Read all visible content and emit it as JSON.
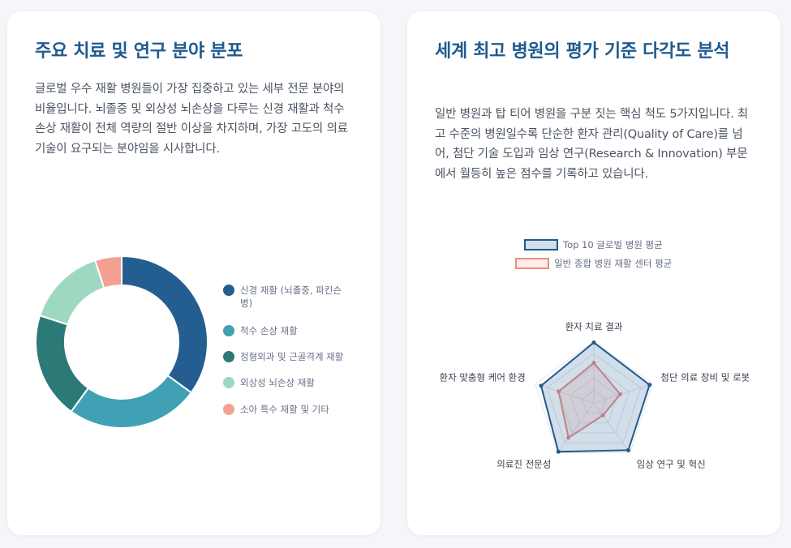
{
  "left_card": {
    "title": "주요 치료 및 연구 분야 분포",
    "description": "글로벌 우수 재활 병원들이 가장 집중하고 있는 세부 전문 분야의 비율입니다. 뇌졸중 및 외상성 뇌손상을 다루는 신경 재활과 척수 손상 재활이 전체 역량의 절반 이상을 차지하며, 가장 고도의 의료 기술이 요구되는 분야임을 시사합니다."
  },
  "right_card": {
    "title": "세계 최고 병원의 평가 기준 다각도 분석",
    "description": "일반 병원과 탑 티어 병원을 구분 짓는 핵심 척도 5가지입니다. 최고 수준의 병원일수록 단순한 환자 관리(Quality of Care)를 넘어, 첨단 기술 도입과 임상 연구(Research & Innovation) 부문에서 월등히 높은 점수를 기록하고 있습니다."
  },
  "chart_data": [
    {
      "type": "pie",
      "variant": "doughnut",
      "categories": [
        "신경 재활 (뇌졸중, 파킨슨병)",
        "척수 손상 재활",
        "정형외과 및 근골격계 재활",
        "외상성 뇌손상 재활",
        "소아 특수 재활 및 기타"
      ],
      "legend_lines": [
        [
          "신경 재활 (뇌졸중, 파킨슨",
          "병)"
        ],
        [
          "척수 손상 재활"
        ],
        [
          "정형외과 및 근골격계 재활"
        ],
        [
          "외상성 뇌손상 재활"
        ],
        [
          "소아 특수 재활 및 기타"
        ]
      ],
      "values": [
        35,
        25,
        20,
        15,
        5
      ],
      "colors": [
        "#245e91",
        "#40a0b4",
        "#2b7a78",
        "#9fd8c0",
        "#f4a093"
      ],
      "legend_placement": "right"
    },
    {
      "type": "radar",
      "axes": [
        "환자 치료 결과",
        "첨단 의료 장비 및 로봇",
        "임상 연구 및 혁신",
        "의료진 전문성",
        "환자 맞춤형 케어 환경"
      ],
      "series": [
        {
          "name": "Top 10 글로벌 병원 평균",
          "values": [
            98,
            95,
            95,
            98,
            90
          ],
          "color": "#1f5a8f",
          "fill": "rgba(31,90,143,0.2)"
        },
        {
          "name": "일반 종합 병원 재활 센터 평균",
          "values": [
            65,
            45,
            25,
            70,
            60
          ],
          "color": "#e58e82",
          "fill": "rgba(244,160,147,0.2)"
        }
      ],
      "range": [
        0,
        100
      ],
      "legend_placement": "top"
    }
  ]
}
